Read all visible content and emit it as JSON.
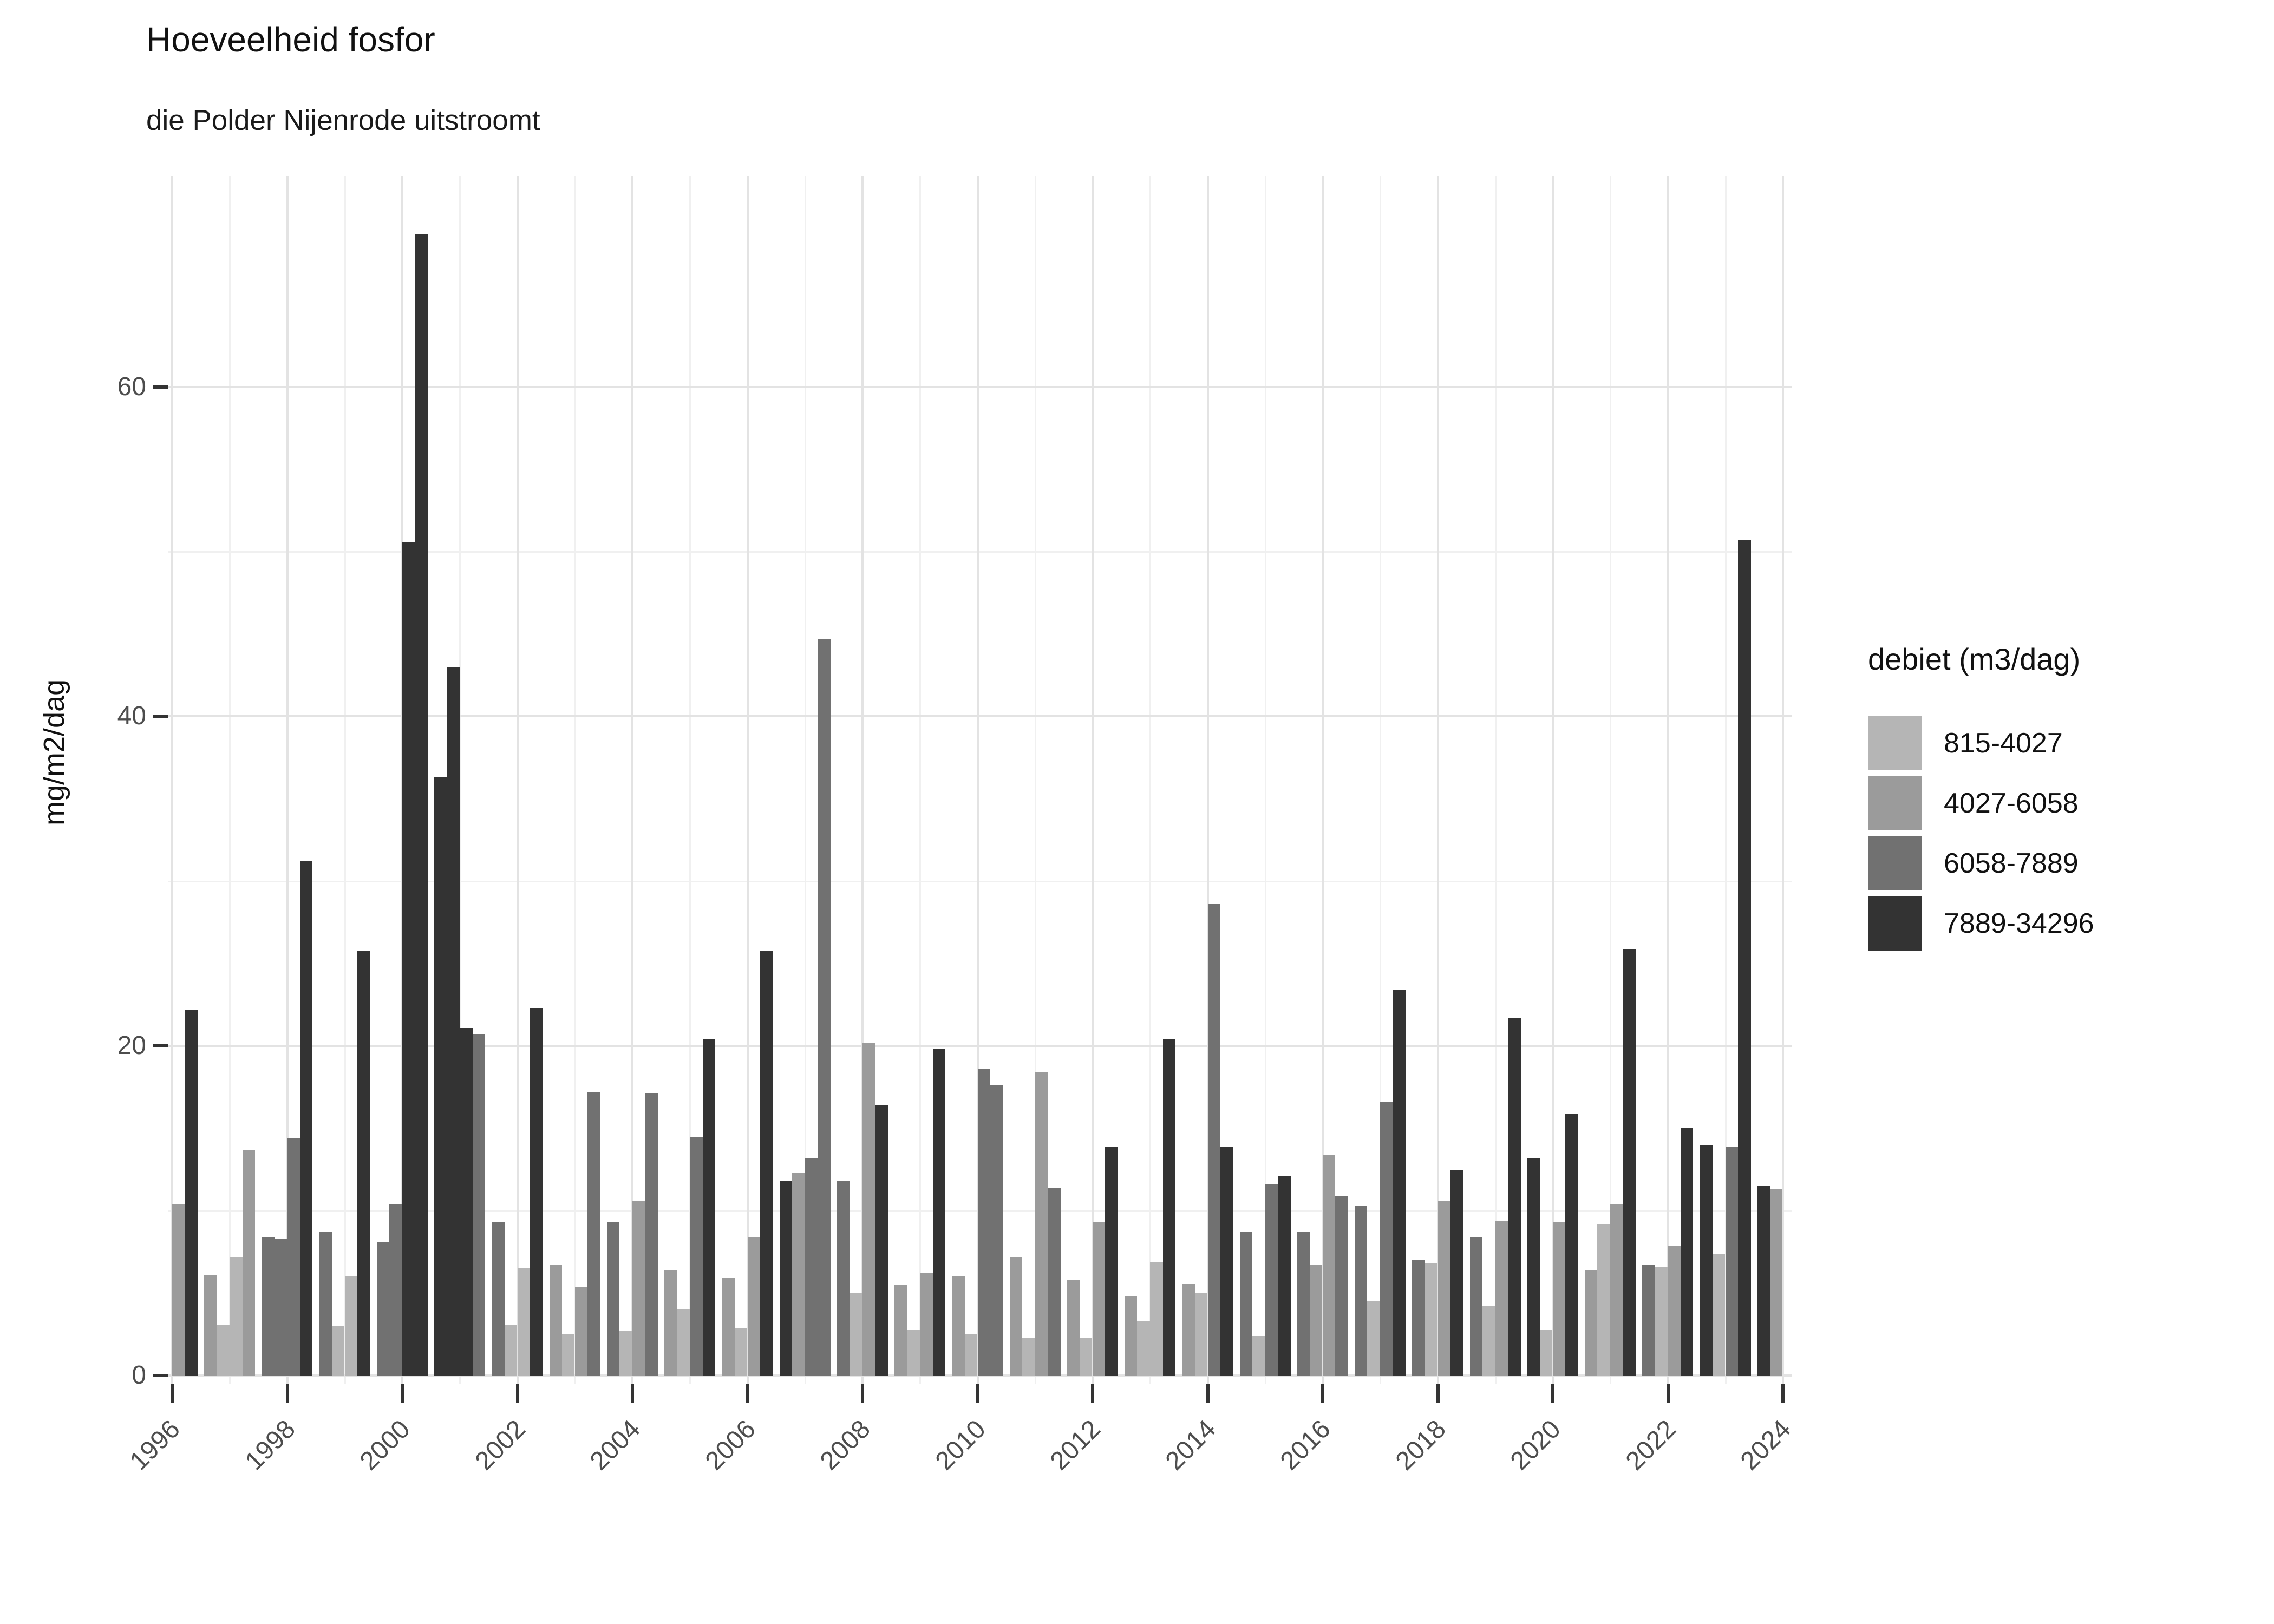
{
  "title": "Hoeveelheid fosfor",
  "subtitle": "die Polder Nijenrode uitstroomt",
  "chart_data": {
    "type": "bar",
    "title": "Hoeveelheid fosfor",
    "subtitle": "die Polder Nijenrode uitstroomt",
    "xlabel": "",
    "ylabel": "mg/m2/dag",
    "ylim": [
      0,
      72.8
    ],
    "yticks": [
      0,
      20,
      40,
      60
    ],
    "xticks": [
      1996,
      1998,
      2000,
      2002,
      2004,
      2006,
      2008,
      2010,
      2012,
      2014,
      2016,
      2018,
      2020,
      2022,
      2024
    ],
    "grid": "on",
    "legend_position": "right",
    "legend": {
      "title": "debiet (m3/dag)",
      "entries": [
        {
          "label": "815-4027",
          "color": "#b5b5b5"
        },
        {
          "label": "4027-6058",
          "color": "#9b9b9b"
        },
        {
          "label": "6058-7889",
          "color": "#717171"
        },
        {
          "label": "7889-34296",
          "color": "#333333"
        }
      ]
    },
    "palette": [
      "#b5b5b5",
      "#9b9b9b",
      "#717171",
      "#333333"
    ],
    "unit": "mg/m2/dag per kwartaal",
    "values": [
      {
        "year": 1996,
        "q": 1,
        "cat": 1,
        "value": 10.4
      },
      {
        "year": 1996,
        "q": 2,
        "cat": 3,
        "value": 22.2
      },
      {
        "year": 1996,
        "q": 3,
        "cat": 1,
        "value": 6.1
      },
      {
        "year": 1996,
        "q": 4,
        "cat": 0,
        "value": 3.1
      },
      {
        "year": 1997,
        "q": 1,
        "cat": 0,
        "value": 7.2
      },
      {
        "year": 1997,
        "q": 2,
        "cat": 1,
        "value": 13.7
      },
      {
        "year": 1997,
        "q": 3,
        "cat": 2,
        "value": 8.4
      },
      {
        "year": 1997,
        "q": 4,
        "cat": 2,
        "value": 8.3
      },
      {
        "year": 1998,
        "q": 1,
        "cat": 2,
        "value": 14.4
      },
      {
        "year": 1998,
        "q": 2,
        "cat": 3,
        "value": 31.2
      },
      {
        "year": 1998,
        "q": 3,
        "cat": 2,
        "value": 8.7
      },
      {
        "year": 1998,
        "q": 4,
        "cat": 0,
        "value": 3.0
      },
      {
        "year": 1999,
        "q": 1,
        "cat": 0,
        "value": 6.0
      },
      {
        "year": 1999,
        "q": 2,
        "cat": 3,
        "value": 25.8
      },
      {
        "year": 1999,
        "q": 3,
        "cat": 2,
        "value": 8.1
      },
      {
        "year": 1999,
        "q": 4,
        "cat": 2,
        "value": 10.4
      },
      {
        "year": 2000,
        "q": 1,
        "cat": 3,
        "value": 50.6
      },
      {
        "year": 2000,
        "q": 2,
        "cat": 3,
        "value": 69.3
      },
      {
        "year": 2000,
        "q": 3,
        "cat": 3,
        "value": 36.3
      },
      {
        "year": 2000,
        "q": 4,
        "cat": 3,
        "value": 43.0
      },
      {
        "year": 2001,
        "q": 1,
        "cat": 3,
        "value": 21.1
      },
      {
        "year": 2001,
        "q": 2,
        "cat": 2,
        "value": 20.7
      },
      {
        "year": 2001,
        "q": 3,
        "cat": 2,
        "value": 9.3
      },
      {
        "year": 2001,
        "q": 4,
        "cat": 0,
        "value": 3.1
      },
      {
        "year": 2002,
        "q": 1,
        "cat": 0,
        "value": 6.5
      },
      {
        "year": 2002,
        "q": 2,
        "cat": 3,
        "value": 22.3
      },
      {
        "year": 2002,
        "q": 3,
        "cat": 1,
        "value": 6.7
      },
      {
        "year": 2002,
        "q": 4,
        "cat": 0,
        "value": 2.5
      },
      {
        "year": 2003,
        "q": 1,
        "cat": 1,
        "value": 5.4
      },
      {
        "year": 2003,
        "q": 2,
        "cat": 2,
        "value": 17.2
      },
      {
        "year": 2003,
        "q": 3,
        "cat": 2,
        "value": 9.3
      },
      {
        "year": 2003,
        "q": 4,
        "cat": 0,
        "value": 2.7
      },
      {
        "year": 2004,
        "q": 1,
        "cat": 1,
        "value": 10.6
      },
      {
        "year": 2004,
        "q": 2,
        "cat": 2,
        "value": 17.1
      },
      {
        "year": 2004,
        "q": 3,
        "cat": 1,
        "value": 6.4
      },
      {
        "year": 2004,
        "q": 4,
        "cat": 0,
        "value": 4.0
      },
      {
        "year": 2005,
        "q": 1,
        "cat": 2,
        "value": 14.5
      },
      {
        "year": 2005,
        "q": 2,
        "cat": 3,
        "value": 20.4
      },
      {
        "year": 2005,
        "q": 3,
        "cat": 1,
        "value": 5.9
      },
      {
        "year": 2005,
        "q": 4,
        "cat": 0,
        "value": 2.9
      },
      {
        "year": 2006,
        "q": 1,
        "cat": 1,
        "value": 8.4
      },
      {
        "year": 2006,
        "q": 2,
        "cat": 3,
        "value": 25.8
      },
      {
        "year": 2006,
        "q": 3,
        "cat": 3,
        "value": 11.8
      },
      {
        "year": 2006,
        "q": 4,
        "cat": 1,
        "value": 12.3
      },
      {
        "year": 2007,
        "q": 1,
        "cat": 2,
        "value": 13.2
      },
      {
        "year": 2007,
        "q": 2,
        "cat": 2,
        "value": 44.7
      },
      {
        "year": 2007,
        "q": 3,
        "cat": 2,
        "value": 11.8
      },
      {
        "year": 2007,
        "q": 4,
        "cat": 0,
        "value": 5.0
      },
      {
        "year": 2008,
        "q": 1,
        "cat": 1,
        "value": 20.2
      },
      {
        "year": 2008,
        "q": 2,
        "cat": 3,
        "value": 16.4
      },
      {
        "year": 2008,
        "q": 3,
        "cat": 1,
        "value": 5.5
      },
      {
        "year": 2008,
        "q": 4,
        "cat": 0,
        "value": 2.8
      },
      {
        "year": 2009,
        "q": 1,
        "cat": 1,
        "value": 6.2
      },
      {
        "year": 2009,
        "q": 2,
        "cat": 3,
        "value": 19.8
      },
      {
        "year": 2009,
        "q": 3,
        "cat": 1,
        "value": 6.0
      },
      {
        "year": 2009,
        "q": 4,
        "cat": 0,
        "value": 2.5
      },
      {
        "year": 2010,
        "q": 1,
        "cat": 2,
        "value": 18.6
      },
      {
        "year": 2010,
        "q": 2,
        "cat": 2,
        "value": 17.6
      },
      {
        "year": 2010,
        "q": 3,
        "cat": 1,
        "value": 7.2
      },
      {
        "year": 2010,
        "q": 4,
        "cat": 0,
        "value": 2.3
      },
      {
        "year": 2011,
        "q": 1,
        "cat": 1,
        "value": 18.4
      },
      {
        "year": 2011,
        "q": 2,
        "cat": 2,
        "value": 11.4
      },
      {
        "year": 2011,
        "q": 3,
        "cat": 1,
        "value": 5.8
      },
      {
        "year": 2011,
        "q": 4,
        "cat": 0,
        "value": 2.3
      },
      {
        "year": 2012,
        "q": 1,
        "cat": 1,
        "value": 9.3
      },
      {
        "year": 2012,
        "q": 2,
        "cat": 3,
        "value": 13.9
      },
      {
        "year": 2012,
        "q": 3,
        "cat": 1,
        "value": 4.8
      },
      {
        "year": 2012,
        "q": 4,
        "cat": 0,
        "value": 3.3
      },
      {
        "year": 2013,
        "q": 1,
        "cat": 0,
        "value": 6.9
      },
      {
        "year": 2013,
        "q": 2,
        "cat": 3,
        "value": 20.4
      },
      {
        "year": 2013,
        "q": 3,
        "cat": 1,
        "value": 5.6
      },
      {
        "year": 2013,
        "q": 4,
        "cat": 0,
        "value": 5.0
      },
      {
        "year": 2014,
        "q": 1,
        "cat": 2,
        "value": 28.6
      },
      {
        "year": 2014,
        "q": 2,
        "cat": 3,
        "value": 13.9
      },
      {
        "year": 2014,
        "q": 3,
        "cat": 2,
        "value": 8.7
      },
      {
        "year": 2014,
        "q": 4,
        "cat": 0,
        "value": 2.4
      },
      {
        "year": 2015,
        "q": 1,
        "cat": 2,
        "value": 11.6
      },
      {
        "year": 2015,
        "q": 2,
        "cat": 3,
        "value": 12.1
      },
      {
        "year": 2015,
        "q": 3,
        "cat": 2,
        "value": 8.7
      },
      {
        "year": 2015,
        "q": 4,
        "cat": 1,
        "value": 6.7
      },
      {
        "year": 2016,
        "q": 1,
        "cat": 1,
        "value": 13.4
      },
      {
        "year": 2016,
        "q": 2,
        "cat": 2,
        "value": 10.9
      },
      {
        "year": 2016,
        "q": 3,
        "cat": 2,
        "value": 10.3
      },
      {
        "year": 2016,
        "q": 4,
        "cat": 0,
        "value": 4.5
      },
      {
        "year": 2017,
        "q": 1,
        "cat": 2,
        "value": 16.6
      },
      {
        "year": 2017,
        "q": 2,
        "cat": 3,
        "value": 23.4
      },
      {
        "year": 2017,
        "q": 3,
        "cat": 2,
        "value": 7.0
      },
      {
        "year": 2017,
        "q": 4,
        "cat": 0,
        "value": 6.8
      },
      {
        "year": 2018,
        "q": 1,
        "cat": 1,
        "value": 10.6
      },
      {
        "year": 2018,
        "q": 2,
        "cat": 3,
        "value": 12.5
      },
      {
        "year": 2018,
        "q": 3,
        "cat": 2,
        "value": 8.4
      },
      {
        "year": 2018,
        "q": 4,
        "cat": 0,
        "value": 4.2
      },
      {
        "year": 2019,
        "q": 1,
        "cat": 1,
        "value": 9.4
      },
      {
        "year": 2019,
        "q": 2,
        "cat": 3,
        "value": 21.7
      },
      {
        "year": 2019,
        "q": 3,
        "cat": 3,
        "value": 13.2
      },
      {
        "year": 2019,
        "q": 4,
        "cat": 0,
        "value": 2.8
      },
      {
        "year": 2020,
        "q": 1,
        "cat": 1,
        "value": 9.3
      },
      {
        "year": 2020,
        "q": 2,
        "cat": 3,
        "value": 15.9
      },
      {
        "year": 2020,
        "q": 3,
        "cat": 1,
        "value": 6.4
      },
      {
        "year": 2020,
        "q": 4,
        "cat": 0,
        "value": 9.2
      },
      {
        "year": 2021,
        "q": 1,
        "cat": 1,
        "value": 10.4
      },
      {
        "year": 2021,
        "q": 2,
        "cat": 3,
        "value": 25.9
      },
      {
        "year": 2021,
        "q": 3,
        "cat": 2,
        "value": 6.7
      },
      {
        "year": 2021,
        "q": 4,
        "cat": 0,
        "value": 6.6
      },
      {
        "year": 2022,
        "q": 1,
        "cat": 1,
        "value": 7.9
      },
      {
        "year": 2022,
        "q": 2,
        "cat": 3,
        "value": 15.0
      },
      {
        "year": 2022,
        "q": 3,
        "cat": 3,
        "value": 14.0
      },
      {
        "year": 2022,
        "q": 4,
        "cat": 0,
        "value": 7.4
      },
      {
        "year": 2023,
        "q": 1,
        "cat": 2,
        "value": 13.9
      },
      {
        "year": 2023,
        "q": 2,
        "cat": 3,
        "value": 50.7
      },
      {
        "year": 2023,
        "q": 3,
        "cat": 3,
        "value": 11.5
      },
      {
        "year": 2023,
        "q": 4,
        "cat": 1,
        "value": 11.3
      }
    ]
  }
}
